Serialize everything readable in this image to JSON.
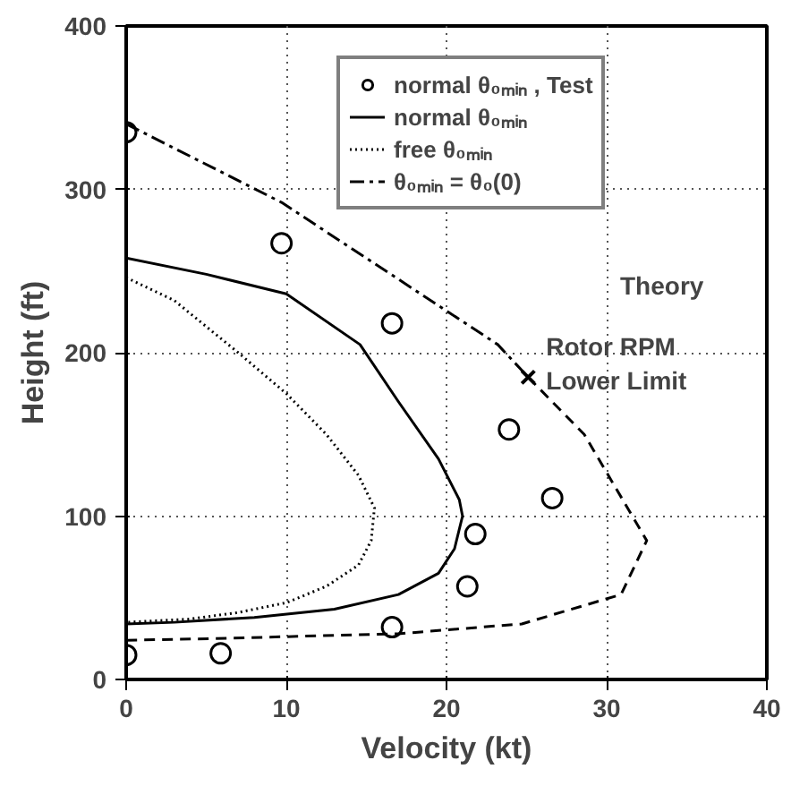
{
  "chart_data": {
    "type": "line",
    "xlabel": "Velocity (kt)",
    "ylabel": "Height (ft)",
    "xlim": [
      0,
      40
    ],
    "ylim": [
      0,
      400
    ],
    "xticks": [
      0,
      10,
      20,
      30,
      40
    ],
    "yticks": [
      0,
      100,
      200,
      300,
      400
    ],
    "grid": true,
    "legend": "top right",
    "series": [
      {
        "name": "normal θ₀ₘᵢₙ , Test",
        "type": "scatter",
        "marker": "circle",
        "color": "#000000",
        "x": [
          0,
          0,
          5.9,
          9.7,
          16.6,
          16.6,
          21.3,
          21.8,
          23.9,
          26.6
        ],
        "values": [
          335,
          15,
          16,
          267,
          218,
          32,
          57,
          89,
          153,
          111
        ]
      },
      {
        "name": "normal θ₀ₘᵢₙ",
        "color": "#000000",
        "line_style": "solid",
        "x": [
          0,
          5,
          10,
          14.6,
          17,
          19.5,
          20.8,
          21,
          20.5,
          19.5,
          17,
          13,
          8,
          3,
          0
        ],
        "values": [
          258,
          248,
          236,
          205,
          170,
          135,
          110,
          100,
          80,
          65,
          52,
          43,
          38,
          35,
          34
        ]
      },
      {
        "name": "free θ₀ₘᵢₙ",
        "color": "#000000",
        "line_style": "dotted",
        "x": [
          0,
          3,
          7,
          10,
          12.5,
          14.5,
          15.5,
          15.3,
          14.5,
          12.5,
          10,
          7,
          4,
          0
        ],
        "values": [
          246,
          232,
          200,
          175,
          150,
          125,
          105,
          85,
          70,
          57,
          47,
          41,
          37,
          35
        ]
      },
      {
        "name": "θ₀ₘᵢₙ = θ₀(0)",
        "color": "#000000",
        "line_style": "dashdot",
        "x": [
          0,
          9.7,
          23.2,
          25.1
        ],
        "values": [
          340,
          292,
          205,
          185
        ]
      },
      {
        "color": "#000000",
        "line_style": "dashed",
        "x": [
          25.1,
          28.6,
          32.5,
          30.9,
          24.7,
          17,
          5.3,
          0
        ],
        "values": [
          185,
          150,
          85,
          52,
          34,
          28,
          25,
          24
        ]
      }
    ],
    "annotations": [
      "Theory",
      {
        "text": "Rotor RPM\nLower Limit",
        "x": 25.1,
        "y": 185
      }
    ]
  }
}
